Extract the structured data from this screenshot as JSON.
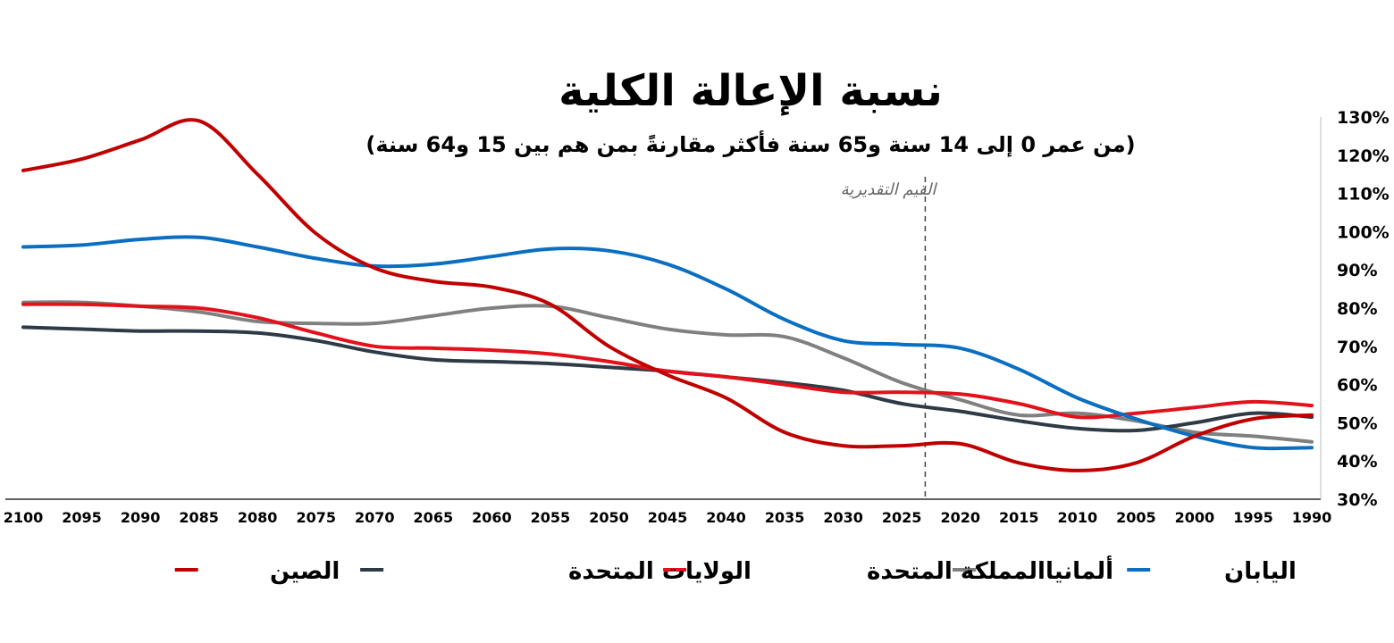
{
  "chart_data": {
    "type": "line",
    "title": "نسبة الإعالة الكلية",
    "subtitle": "(من عمر 0 إلى 14 سنة و65 سنة فأكثر مقارنةً بمن هم بين 15 و64 سنة)",
    "annotation": "القيم التقديرية",
    "projection_start": 2023,
    "x_reversed": true,
    "xlim": [
      2100,
      1990
    ],
    "ylim": [
      30,
      130
    ],
    "y_ticks": [
      "30%",
      "40%",
      "50%",
      "60%",
      "70%",
      "80%",
      "90%",
      "100%",
      "110%",
      "120%",
      "130%"
    ],
    "x_ticks": [
      "2100",
      "2095",
      "2090",
      "2085",
      "2080",
      "2075",
      "2070",
      "2065",
      "2060",
      "2055",
      "2050",
      "2045",
      "2040",
      "2035",
      "2030",
      "2025",
      "2020",
      "2015",
      "2010",
      "2005",
      "2000",
      "1995",
      "1990"
    ],
    "x": [
      1990,
      1995,
      2000,
      2005,
      2010,
      2015,
      2020,
      2025,
      2030,
      2035,
      2040,
      2045,
      2050,
      2055,
      2060,
      2065,
      2070,
      2075,
      2080,
      2085,
      2090,
      2095,
      2100
    ],
    "legend_position": "bottom",
    "series": [
      {
        "name": "اليابان",
        "color": "#0a6fc2",
        "values": [
          43.5,
          43.5,
          46.5,
          51,
          56.5,
          64,
          69.5,
          70.5,
          71.5,
          77,
          85,
          91.5,
          95,
          95.5,
          93.5,
          91.5,
          91,
          93,
          96,
          98.5,
          98,
          96.5,
          96
        ]
      },
      {
        "name": "ألمانيا",
        "color": "#808080",
        "values": [
          45,
          46.5,
          47.5,
          50.5,
          52.5,
          52,
          56,
          60.5,
          67,
          72.5,
          73,
          74.5,
          77.5,
          80.5,
          80,
          78,
          76,
          76,
          76.5,
          79,
          80.5,
          81.5,
          81.5
        ]
      },
      {
        "name": "المملكة المتحدة",
        "color": "#e2111b",
        "values": [
          54.5,
          55.5,
          54,
          52.5,
          51.5,
          55,
          57.5,
          58,
          58,
          60,
          62,
          63.5,
          66,
          68,
          69,
          69.5,
          70,
          73.5,
          77.5,
          80,
          80.5,
          81,
          81
        ]
      },
      {
        "name": "الولايات المتحدة",
        "color": "#2e3a46",
        "values": [
          51.5,
          52.5,
          50,
          48,
          48.5,
          50.5,
          53,
          55,
          58.5,
          60.5,
          62,
          63.5,
          64.5,
          65.5,
          66,
          66.5,
          68.5,
          71.5,
          73.5,
          74,
          74,
          74.5,
          75
        ]
      },
      {
        "name": "الصين",
        "color": "#c00000",
        "values": [
          52,
          51,
          46.5,
          39.5,
          37.5,
          39.5,
          44.5,
          44,
          44,
          47.5,
          56.5,
          62.5,
          70,
          81,
          85.5,
          87,
          90.5,
          99.5,
          115,
          129,
          124,
          119,
          116
        ]
      }
    ]
  }
}
